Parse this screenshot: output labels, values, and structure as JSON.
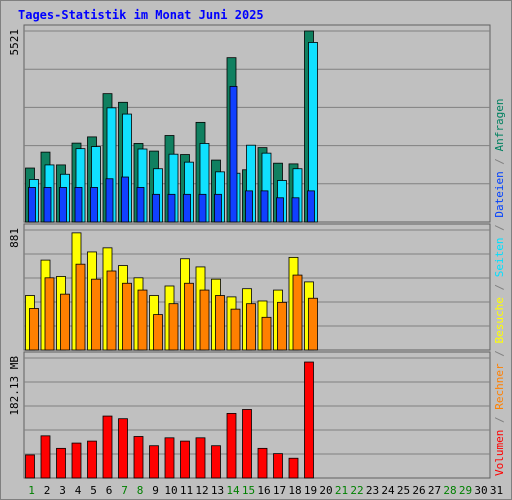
{
  "page": {
    "title": "Tages-Statistik im Monat Juni 2025"
  },
  "legend": [
    {
      "label": "Volumen",
      "color": "#ff0000"
    },
    {
      "label": " / ",
      "color": "#808080"
    },
    {
      "label": "Rechner",
      "color": "#ff8000"
    },
    {
      "label": " / ",
      "color": "#808080"
    },
    {
      "label": "Besuche",
      "color": "#ffff00"
    },
    {
      "label": " / ",
      "color": "#808080"
    },
    {
      "label": "Seiten",
      "color": "#00e0ff"
    },
    {
      "label": " / ",
      "color": "#808080"
    },
    {
      "label": "Dateien",
      "color": "#0040ff"
    },
    {
      "label": " / ",
      "color": "#808080"
    },
    {
      "label": "Anfragen",
      "color": "#008060"
    }
  ],
  "colors": {
    "anfragen": "#108060",
    "dateien": "#1040ff",
    "seiten": "#10e0ff",
    "besuche": "#ffff00",
    "rechner": "#ff8000",
    "volumen": "#ff0000",
    "weekday_label": "#000000",
    "weekend_label": "#008000",
    "grid": "#808080",
    "title": "#0000ff"
  },
  "chart_data": [
    {
      "type": "bar",
      "panel": "top",
      "ymax_label": "5521",
      "ymax": 5521,
      "categories": [
        "1",
        "2",
        "3",
        "4",
        "5",
        "6",
        "7",
        "8",
        "9",
        "10",
        "11",
        "12",
        "13",
        "14",
        "15",
        "16",
        "17",
        "18",
        "19",
        "20",
        "21",
        "22",
        "23",
        "24",
        "25",
        "26",
        "27",
        "28",
        "29",
        "30",
        "31"
      ],
      "weekend_days": [
        "1",
        "7",
        "8",
        "14",
        "15",
        "21",
        "22",
        "28",
        "29"
      ],
      "series": [
        {
          "name": "Anfragen",
          "values": [
            1560,
            2020,
            1650,
            2280,
            2460,
            3710,
            3460,
            2270,
            2050,
            2500,
            1950,
            2880,
            1790,
            4750,
            1510,
            2150,
            1700,
            1680,
            5521,
            null,
            null,
            null,
            null,
            null,
            null,
            null,
            null,
            null,
            null,
            null,
            null
          ]
        },
        {
          "name": "Seiten",
          "values": [
            1230,
            1650,
            1380,
            2120,
            2180,
            3300,
            3120,
            2110,
            1540,
            1960,
            1730,
            2270,
            1450,
            1410,
            2220,
            1990,
            1200,
            1540,
            5190,
            null,
            null,
            null,
            null,
            null,
            null,
            null,
            null,
            null,
            null,
            null,
            null
          ]
        },
        {
          "name": "Dateien",
          "values": [
            1000,
            1000,
            1000,
            1000,
            1000,
            1250,
            1300,
            1000,
            800,
            800,
            800,
            800,
            800,
            3920,
            900,
            900,
            700,
            700,
            900,
            null,
            null,
            null,
            null,
            null,
            null,
            null,
            null,
            null,
            null,
            null,
            null
          ]
        }
      ]
    },
    {
      "type": "bar",
      "panel": "middle",
      "ymax_label": "881",
      "ymax": 881,
      "categories": [
        "1",
        "2",
        "3",
        "4",
        "5",
        "6",
        "7",
        "8",
        "9",
        "10",
        "11",
        "12",
        "13",
        "14",
        "15",
        "16",
        "17",
        "18",
        "19",
        "20",
        "21",
        "22",
        "23",
        "24",
        "25",
        "26",
        "27",
        "28",
        "29",
        "30",
        "31"
      ],
      "series": [
        {
          "name": "Besuche",
          "values": [
            400,
            660,
            540,
            860,
            720,
            750,
            620,
            530,
            400,
            470,
            670,
            610,
            520,
            390,
            450,
            360,
            440,
            680,
            500,
            null,
            null,
            null,
            null,
            null,
            null,
            null,
            null,
            null,
            null,
            null,
            null
          ]
        },
        {
          "name": "Rechner",
          "values": [
            305,
            530,
            410,
            630,
            520,
            580,
            490,
            440,
            260,
            340,
            490,
            440,
            400,
            300,
            340,
            240,
            350,
            550,
            380,
            null,
            null,
            null,
            null,
            null,
            null,
            null,
            null,
            null,
            null,
            null,
            null
          ]
        }
      ]
    },
    {
      "type": "bar",
      "panel": "bottom",
      "ymax_label": "182.13 MB",
      "ymax": 182.13,
      "categories": [
        "1",
        "2",
        "3",
        "4",
        "5",
        "6",
        "7",
        "8",
        "9",
        "10",
        "11",
        "12",
        "13",
        "14",
        "15",
        "16",
        "17",
        "18",
        "19",
        "20",
        "21",
        "22",
        "23",
        "24",
        "25",
        "26",
        "27",
        "28",
        "29",
        "30",
        "31"
      ],
      "series": [
        {
          "name": "Volumen",
          "values": [
            35,
            64,
            45,
            53,
            56,
            94,
            90,
            63,
            49,
            61,
            56,
            61,
            49,
            98,
            104,
            45,
            37,
            30,
            176,
            null,
            null,
            null,
            null,
            null,
            null,
            null,
            null,
            null,
            null,
            null,
            null
          ]
        }
      ]
    }
  ]
}
